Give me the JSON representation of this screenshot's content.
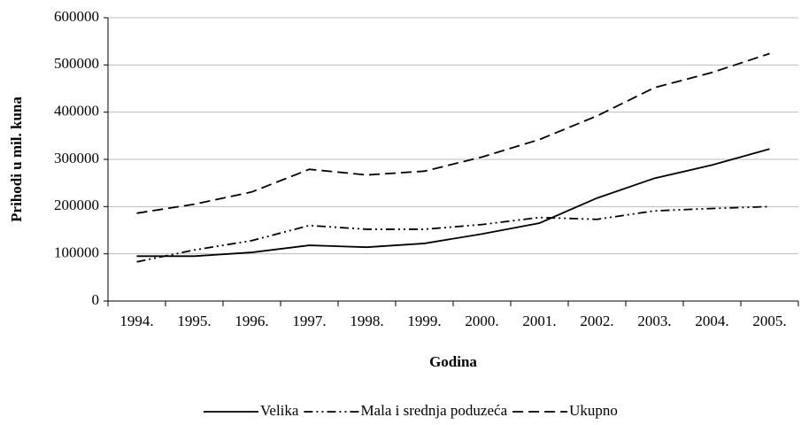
{
  "chart_data": {
    "type": "line",
    "xlabel": "Godina",
    "ylabel": "Prihodi u mil. kuna",
    "categories": [
      "1994.",
      "1995.",
      "1996.",
      "1997.",
      "1998.",
      "1999.",
      "2000.",
      "2001.",
      "2002.",
      "2003.",
      "2004.",
      "2005."
    ],
    "series": [
      {
        "name": "Velika",
        "color": "#000000",
        "dash": "none",
        "values": [
          95000,
          95000,
          103000,
          118000,
          114000,
          122000,
          142000,
          165000,
          218000,
          260000,
          288000,
          322000
        ]
      },
      {
        "name": "Mala i srednja poduzeća",
        "color": "#000000",
        "dash": "10,4,2,4,2,4",
        "values": [
          83000,
          108000,
          128000,
          160000,
          152000,
          152000,
          162000,
          177000,
          173000,
          191000,
          196000,
          200000
        ]
      },
      {
        "name": "Ukupno",
        "color": "#000000",
        "dash": "12,6",
        "values": [
          186000,
          205000,
          231000,
          279000,
          267000,
          275000,
          305000,
          342000,
          392000,
          452000,
          484000,
          524000
        ]
      }
    ],
    "ylim": [
      0,
      600000
    ],
    "yticks": [
      0,
      100000,
      200000,
      300000,
      400000,
      500000,
      600000
    ],
    "grid": true,
    "legend": "bottom"
  }
}
